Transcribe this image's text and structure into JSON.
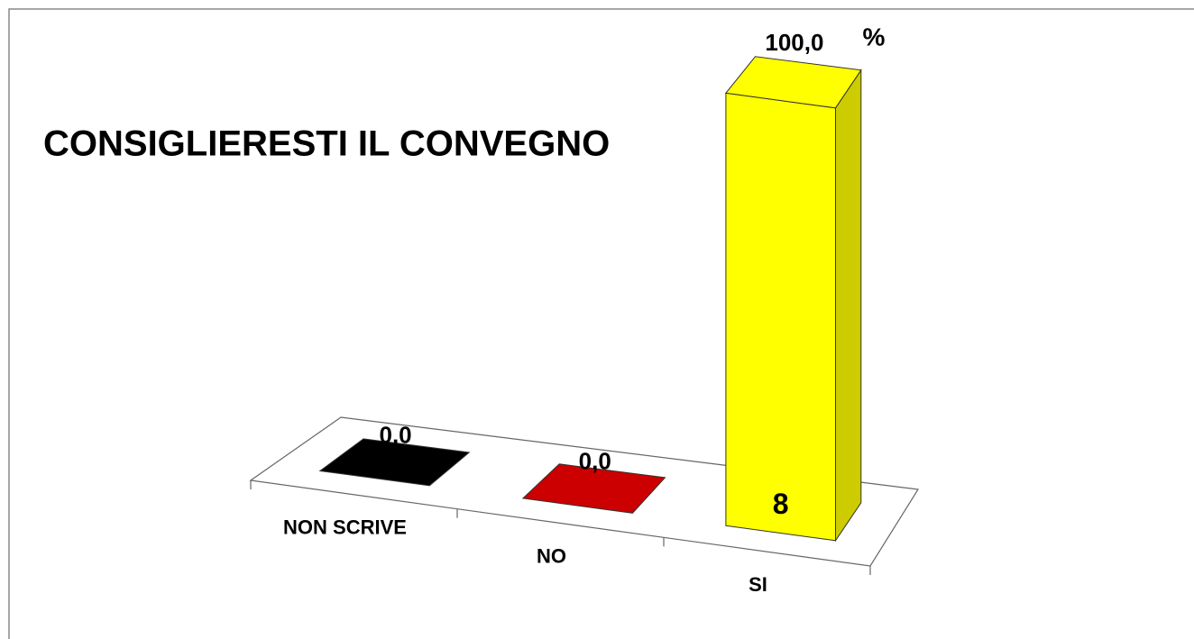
{
  "chart_data": {
    "type": "bar3d",
    "title": "CONSIGLIERESTI IL CONVEGNO",
    "categories": [
      "NON SCRIVE",
      "NO",
      "SI"
    ],
    "values": [
      0.0,
      0.0,
      100.0
    ],
    "value_labels": [
      "0,0",
      "0,0",
      "100,0"
    ],
    "unit": "%",
    "counts": [
      null,
      null,
      8
    ],
    "colors": [
      "#000000",
      "#cc0000",
      "#ffff00"
    ],
    "ylim": [
      0,
      100
    ]
  }
}
